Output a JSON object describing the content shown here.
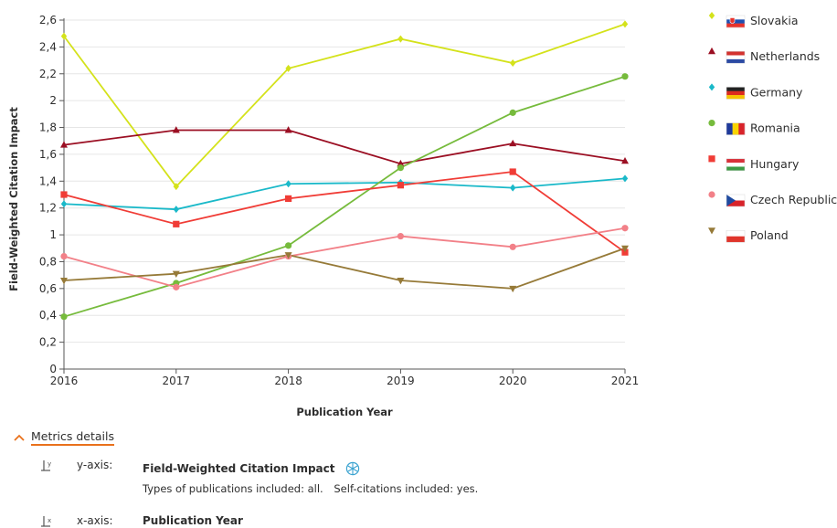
{
  "chart_data": {
    "type": "line",
    "title": "",
    "xlabel": "Publication Year",
    "ylabel": "Field-Weighted Citation Impact",
    "x": [
      2016,
      2017,
      2018,
      2019,
      2020,
      2021
    ],
    "x_tick_labels": [
      "2016",
      "2017",
      "2018",
      "2019",
      "2020",
      "2021"
    ],
    "ylim": [
      0,
      2.6
    ],
    "y_ticks": [
      0,
      0.2,
      0.4,
      0.6,
      0.8,
      1,
      1.2,
      1.4,
      1.6,
      1.8,
      2,
      2.2,
      2.4,
      2.6
    ],
    "y_tick_labels": [
      "0",
      "0,2",
      "0,4",
      "0,6",
      "0,8",
      "1",
      "1,2",
      "1,4",
      "1,6",
      "1,8",
      "2",
      "2,2",
      "2,4",
      "2,6"
    ],
    "grid": "horizontal",
    "legend_position": "right",
    "series": [
      {
        "name": "Slovakia",
        "color": "#d4e21b",
        "marker": "diamond",
        "flag": "slovakia-flag",
        "values": [
          2.48,
          1.36,
          2.24,
          2.46,
          2.28,
          2.57
        ]
      },
      {
        "name": "Netherlands",
        "color": "#9b0f23",
        "marker": "triangle",
        "flag": "netherlands-flag",
        "values": [
          1.67,
          1.78,
          1.78,
          1.53,
          1.68,
          1.55
        ]
      },
      {
        "name": "Germany",
        "color": "#1ab9c9",
        "marker": "diamond",
        "flag": "germany-flag",
        "values": [
          1.23,
          1.19,
          1.38,
          1.39,
          1.35,
          1.42
        ]
      },
      {
        "name": "Romania",
        "color": "#76bb3c",
        "marker": "circle",
        "flag": "romania-flag",
        "values": [
          0.39,
          0.64,
          0.92,
          1.5,
          1.91,
          2.18
        ]
      },
      {
        "name": "Hungary",
        "color": "#f03c36",
        "marker": "square",
        "flag": "hungary-flag",
        "values": [
          1.3,
          1.08,
          1.27,
          1.37,
          1.47,
          0.87
        ]
      },
      {
        "name": "Czech Republic",
        "color": "#f28088",
        "marker": "circle",
        "flag": "czech-republic-flag",
        "values": [
          0.84,
          0.61,
          0.84,
          0.99,
          0.91,
          1.05
        ]
      },
      {
        "name": "Poland",
        "color": "#967a38",
        "marker": "triangle-down",
        "flag": "poland-flag",
        "values": [
          0.66,
          0.71,
          0.85,
          0.66,
          0.6,
          0.9
        ]
      }
    ]
  },
  "details": {
    "toggle_label": "Metrics details",
    "y_axis": {
      "key": "y-axis:",
      "metric": "Field-Weighted Citation Impact",
      "icon": "snowball-metric-icon",
      "publications_included": "Types of publications included: all.",
      "self_citations": "Self-citations included: yes."
    },
    "x_axis": {
      "key": "x-axis:",
      "metric": "Publication Year"
    }
  }
}
